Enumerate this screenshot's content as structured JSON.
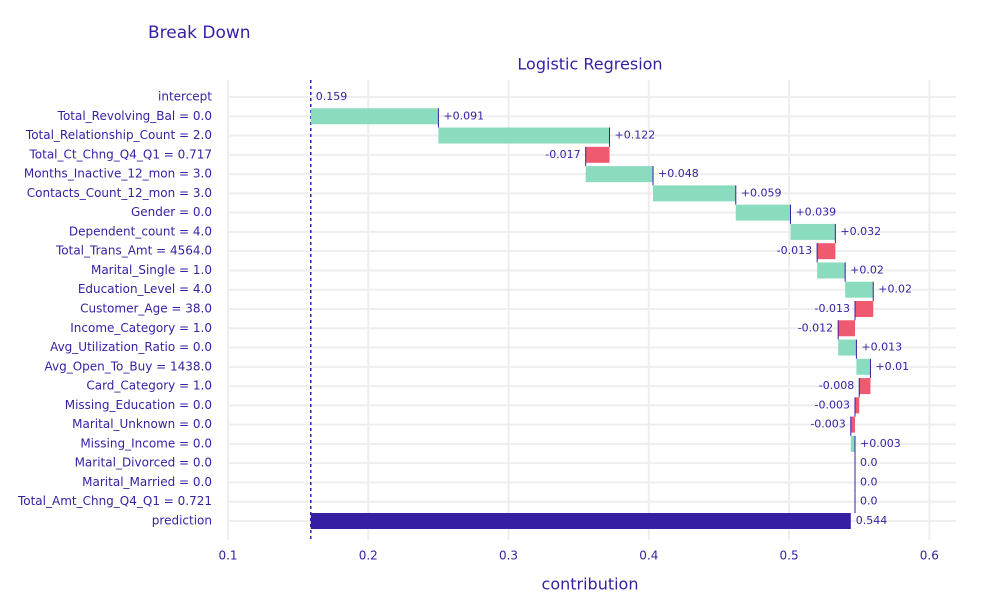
{
  "chart_data": {
    "type": "waterfall",
    "title": "Break Down",
    "subtitle": "Logistic Regresion",
    "xlabel": "contribution",
    "categories": [
      "intercept",
      "Total_Revolving_Bal = 0.0",
      "Total_Relationship_Count = 2.0",
      "Total_Ct_Chng_Q4_Q1 = 0.717",
      "Months_Inactive_12_mon = 3.0",
      "Contacts_Count_12_mon = 3.0",
      "Gender = 0.0",
      "Dependent_count = 4.0",
      "Total_Trans_Amt = 4564.0",
      "Marital_Single = 1.0",
      "Education_Level = 4.0",
      "Customer_Age = 38.0",
      "Income_Category = 1.0",
      "Avg_Utilization_Ratio = 0.0",
      "Avg_Open_To_Buy = 1438.0",
      "Card_Category = 1.0",
      "Missing_Education = 0.0",
      "Marital_Unknown = 0.0",
      "Missing_Income = 0.0",
      "Marital_Divorced = 0.0",
      "Marital_Married = 0.0",
      "Total_Amt_Chng_Q4_Q1 = 0.721",
      "prediction"
    ],
    "values": [
      0.159,
      0.091,
      0.122,
      -0.017,
      0.048,
      0.059,
      0.039,
      0.032,
      -0.013,
      0.02,
      0.02,
      -0.013,
      -0.012,
      0.013,
      0.01,
      -0.008,
      -0.003,
      -0.003,
      0.003,
      0,
      0,
      0,
      0.544
    ],
    "value_labels": [
      "0.159",
      "+0.091",
      "+0.122",
      "-0.017",
      "+0.048",
      "+0.059",
      "+0.039",
      "+0.032",
      "-0.013",
      "+0.02",
      "+0.02",
      "-0.013",
      "-0.012",
      "+0.013",
      "+0.01",
      "-0.008",
      "-0.003",
      "-0.003",
      "+0.003",
      "0.0",
      "0.0",
      "0.0",
      "0.544"
    ],
    "colors": {
      "positive": "#8bdcbe",
      "negative": "#f05a71",
      "total": "#371ea3"
    },
    "xlim": [
      0.1,
      0.619
    ],
    "xticks": [
      0.1,
      0.2,
      0.3,
      0.4,
      0.5,
      0.6
    ],
    "grid": true
  }
}
